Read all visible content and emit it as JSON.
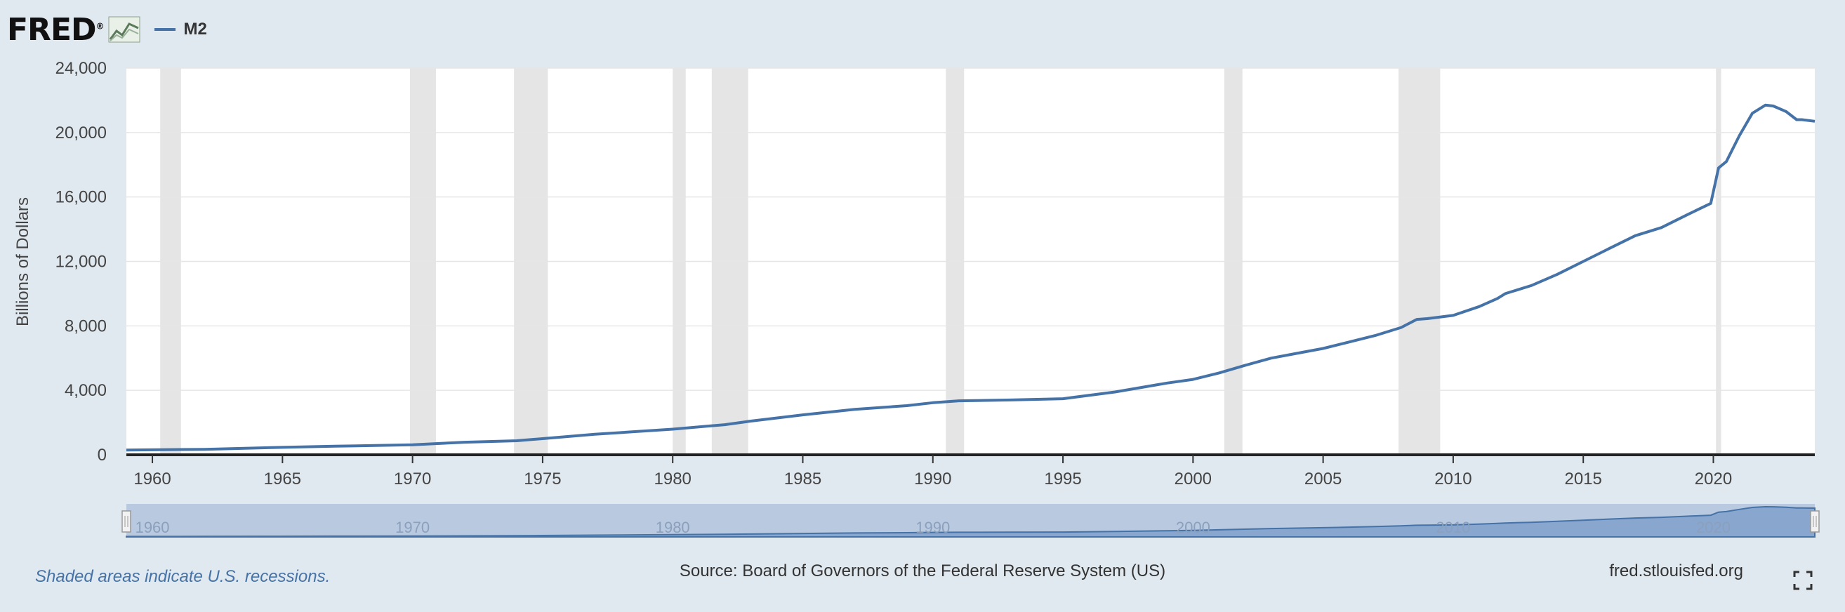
{
  "header": {
    "logo_text": "FRED",
    "logo_mark": "®",
    "logo_icon": "line-graph-icon",
    "series_legend": "M2"
  },
  "footer": {
    "recession_note": "Shaded areas indicate U.S. recessions.",
    "source": "Source: Board of Governors of the Federal Reserve System (US)",
    "site": "fred.stlouisfed.org",
    "fullscreen_icon": "fullscreen-icon"
  },
  "colors": {
    "line": "#4572a7",
    "recession": "#e5e5e5",
    "background": "#e1e9f0",
    "plot": "#ffffff",
    "navigator": "#b8c9e0",
    "navigator_fill": "#89a6ce"
  },
  "chart_data": {
    "type": "line",
    "title": "",
    "xlabel": "",
    "ylabel": "Billions of Dollars",
    "xlim": [
      1959.0,
      2023.9
    ],
    "ylim": [
      0,
      24000
    ],
    "yticks": [
      0,
      4000,
      8000,
      12000,
      16000,
      20000,
      24000
    ],
    "ytick_labels": [
      "0",
      "4,000",
      "8,000",
      "12,000",
      "16,000",
      "20,000",
      "24,000"
    ],
    "xticks": [
      1960,
      1965,
      1970,
      1975,
      1980,
      1985,
      1990,
      1995,
      2000,
      2005,
      2010,
      2015,
      2020
    ],
    "navigator_labels": [
      1960,
      1970,
      1980,
      1990,
      2000,
      2010,
      2020
    ],
    "grid": true,
    "legend": "top-left",
    "recessions": [
      [
        1960.3,
        1961.1
      ],
      [
        1969.9,
        1970.9
      ],
      [
        1973.9,
        1975.2
      ],
      [
        1980.0,
        1980.5
      ],
      [
        1981.5,
        1982.9
      ],
      [
        1990.5,
        1991.2
      ],
      [
        2001.2,
        2001.9
      ],
      [
        2007.9,
        2009.5
      ],
      [
        2020.1,
        2020.3
      ]
    ],
    "series": [
      {
        "name": "M2",
        "x": [
          1959.0,
          1960,
          1962,
          1965,
          1967,
          1970,
          1972,
          1974,
          1975,
          1977,
          1980,
          1982,
          1983,
          1985,
          1987,
          1989,
          1990,
          1991,
          1993,
          1995,
          1997,
          1999,
          2000,
          2001,
          2002,
          2003,
          2004,
          2005,
          2006,
          2007,
          2008,
          2008.6,
          2009,
          2010,
          2011,
          2011.7,
          2012,
          2013,
          2014,
          2015,
          2016,
          2017,
          2018,
          2019,
          2019.9,
          2020.2,
          2020.5,
          2021,
          2021.5,
          2022.0,
          2022.3,
          2022.8,
          2023.2,
          2023.4,
          2023.9
        ],
        "y": [
          290,
          310,
          340,
          460,
          530,
          620,
          780,
          870,
          1000,
          1270,
          1590,
          1870,
          2090,
          2480,
          2820,
          3050,
          3230,
          3350,
          3400,
          3480,
          3900,
          4450,
          4680,
          5080,
          5550,
          6000,
          6300,
          6600,
          7000,
          7400,
          7900,
          8400,
          8450,
          8650,
          9200,
          9700,
          10000,
          10500,
          11200,
          12000,
          12800,
          13600,
          14100,
          14900,
          15600,
          17800,
          18200,
          19800,
          21200,
          21700,
          21650,
          21300,
          20800,
          20800,
          20700
        ]
      }
    ]
  }
}
